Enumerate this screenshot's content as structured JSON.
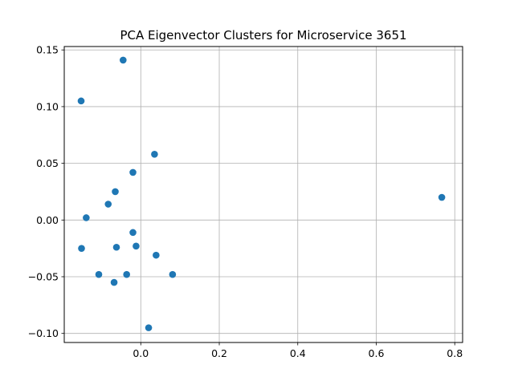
{
  "chart_data": {
    "type": "scatter",
    "title": "PCA Eigenvector Clusters for Microservice 3651",
    "xlabel": "",
    "ylabel": "",
    "xlim": [
      -0.195,
      0.82
    ],
    "ylim": [
      -0.108,
      0.153
    ],
    "grid": true,
    "marker_color": "#1f77b4",
    "x_ticks": [
      {
        "value": 0.0,
        "label": "0.0"
      },
      {
        "value": 0.2,
        "label": "0.2"
      },
      {
        "value": 0.4,
        "label": "0.4"
      },
      {
        "value": 0.6,
        "label": "0.6"
      },
      {
        "value": 0.8,
        "label": "0.8"
      }
    ],
    "y_ticks": [
      {
        "value": -0.1,
        "label": "−0.10"
      },
      {
        "value": -0.05,
        "label": "−0.05"
      },
      {
        "value": 0.0,
        "label": "0.00"
      },
      {
        "value": 0.05,
        "label": "0.05"
      },
      {
        "value": 0.1,
        "label": "0.10"
      },
      {
        "value": 0.15,
        "label": "0.15"
      }
    ],
    "points": [
      {
        "x": -0.045,
        "y": 0.141
      },
      {
        "x": -0.152,
        "y": 0.105
      },
      {
        "x": 0.035,
        "y": 0.058
      },
      {
        "x": -0.02,
        "y": 0.042
      },
      {
        "x": -0.065,
        "y": 0.025
      },
      {
        "x": -0.083,
        "y": 0.014
      },
      {
        "x": -0.139,
        "y": 0.002
      },
      {
        "x": 0.767,
        "y": 0.02
      },
      {
        "x": -0.02,
        "y": -0.011
      },
      {
        "x": -0.151,
        "y": -0.025
      },
      {
        "x": -0.062,
        "y": -0.024
      },
      {
        "x": -0.012,
        "y": -0.023
      },
      {
        "x": 0.039,
        "y": -0.031
      },
      {
        "x": -0.107,
        "y": -0.048
      },
      {
        "x": -0.036,
        "y": -0.048
      },
      {
        "x": 0.081,
        "y": -0.048
      },
      {
        "x": -0.068,
        "y": -0.055
      },
      {
        "x": 0.02,
        "y": -0.095
      }
    ]
  }
}
